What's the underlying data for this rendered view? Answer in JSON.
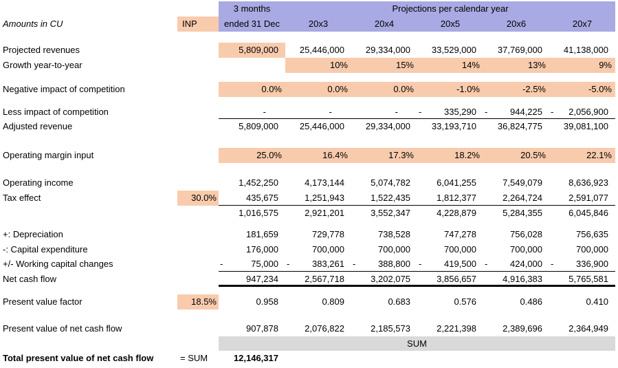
{
  "header": {
    "amounts_label": "Amounts in CU",
    "inp_label": "INP",
    "period_col_line1": "3 months",
    "period_col_line2": "ended 31 Dec",
    "projections_title": "Projections per calendar year",
    "years": [
      "20x3",
      "20x4",
      "20x5",
      "20x6",
      "20x7"
    ]
  },
  "rows": {
    "projected_revenues": {
      "label": "Projected revenues",
      "v": [
        "5,809,000",
        "25,446,000",
        "29,334,000",
        "33,529,000",
        "37,769,000",
        "41,138,000"
      ]
    },
    "growth": {
      "label": "Growth year-to-year",
      "v": [
        "",
        "10%",
        "15%",
        "14%",
        "13%",
        "9%"
      ]
    },
    "negative_impact": {
      "label": "Negative impact of competition",
      "v": [
        "0.0%",
        "0.0%",
        "0.0%",
        "-1.0%",
        "-2.5%",
        "-5.0%"
      ]
    },
    "less_impact": {
      "label": "Less impact of competition",
      "sign": [
        "",
        "",
        "",
        "-",
        "-",
        "-"
      ],
      "v": [
        "-",
        "-",
        "-",
        "335,290",
        "944,225",
        "2,056,900"
      ]
    },
    "adjusted_revenue": {
      "label": "Adjusted revenue",
      "v": [
        "5,809,000",
        "25,446,000",
        "29,334,000",
        "33,193,710",
        "36,824,775",
        "39,081,100"
      ]
    },
    "operating_margin": {
      "label": "Operating margin input",
      "v": [
        "25.0%",
        "16.4%",
        "17.3%",
        "18.2%",
        "20.5%",
        "22.1%"
      ]
    },
    "operating_income": {
      "label": "Operating income",
      "v": [
        "1,452,250",
        "4,173,144",
        "5,074,782",
        "6,041,255",
        "7,549,079",
        "8,636,923"
      ]
    },
    "tax_effect": {
      "label": "Tax effect",
      "inp": "30.0%",
      "v": [
        "435,675",
        "1,251,943",
        "1,522,435",
        "1,812,377",
        "2,264,724",
        "2,591,077"
      ]
    },
    "after_tax": {
      "label": "",
      "v": [
        "1,016,575",
        "2,921,201",
        "3,552,347",
        "4,228,879",
        "5,284,355",
        "6,045,846"
      ]
    },
    "depreciation": {
      "label": "+: Depreciation",
      "v": [
        "181,659",
        "729,778",
        "738,528",
        "747,278",
        "756,028",
        "756,635"
      ]
    },
    "capex": {
      "label": "-: Capital expenditure",
      "v": [
        "176,000",
        "700,000",
        "700,000",
        "700,000",
        "700,000",
        "700,000"
      ]
    },
    "working_capital": {
      "label": "+/- Working capital changes",
      "sign": [
        "-",
        "-",
        "-",
        "-",
        "-",
        "-"
      ],
      "v": [
        "75,000",
        "383,261",
        "388,800",
        "419,500",
        "424,000",
        "336,900"
      ]
    },
    "net_cash_flow": {
      "label": "Net cash flow",
      "v": [
        "947,234",
        "2,567,718",
        "3,202,075",
        "3,856,657",
        "4,916,383",
        "5,765,581"
      ]
    },
    "pv_factor": {
      "label": "Present value factor",
      "inp": "18.5%",
      "v": [
        "0.958",
        "0.809",
        "0.683",
        "0.576",
        "0.486",
        "0.410"
      ]
    },
    "pv_ncf": {
      "label": "Present value of net cash flow",
      "v": [
        "907,878",
        "2,076,822",
        "2,185,573",
        "2,221,398",
        "2,389,696",
        "2,364,949"
      ]
    },
    "sum_band": {
      "text": "SUM"
    },
    "total": {
      "label": "Total present value of net cash flow",
      "formula": "= SUM",
      "value": "12,146,317"
    }
  },
  "colors": {
    "header_purple": "#a9a9e3",
    "input_orange": "#f8cbad",
    "sum_gray": "#d9d9d9"
  }
}
